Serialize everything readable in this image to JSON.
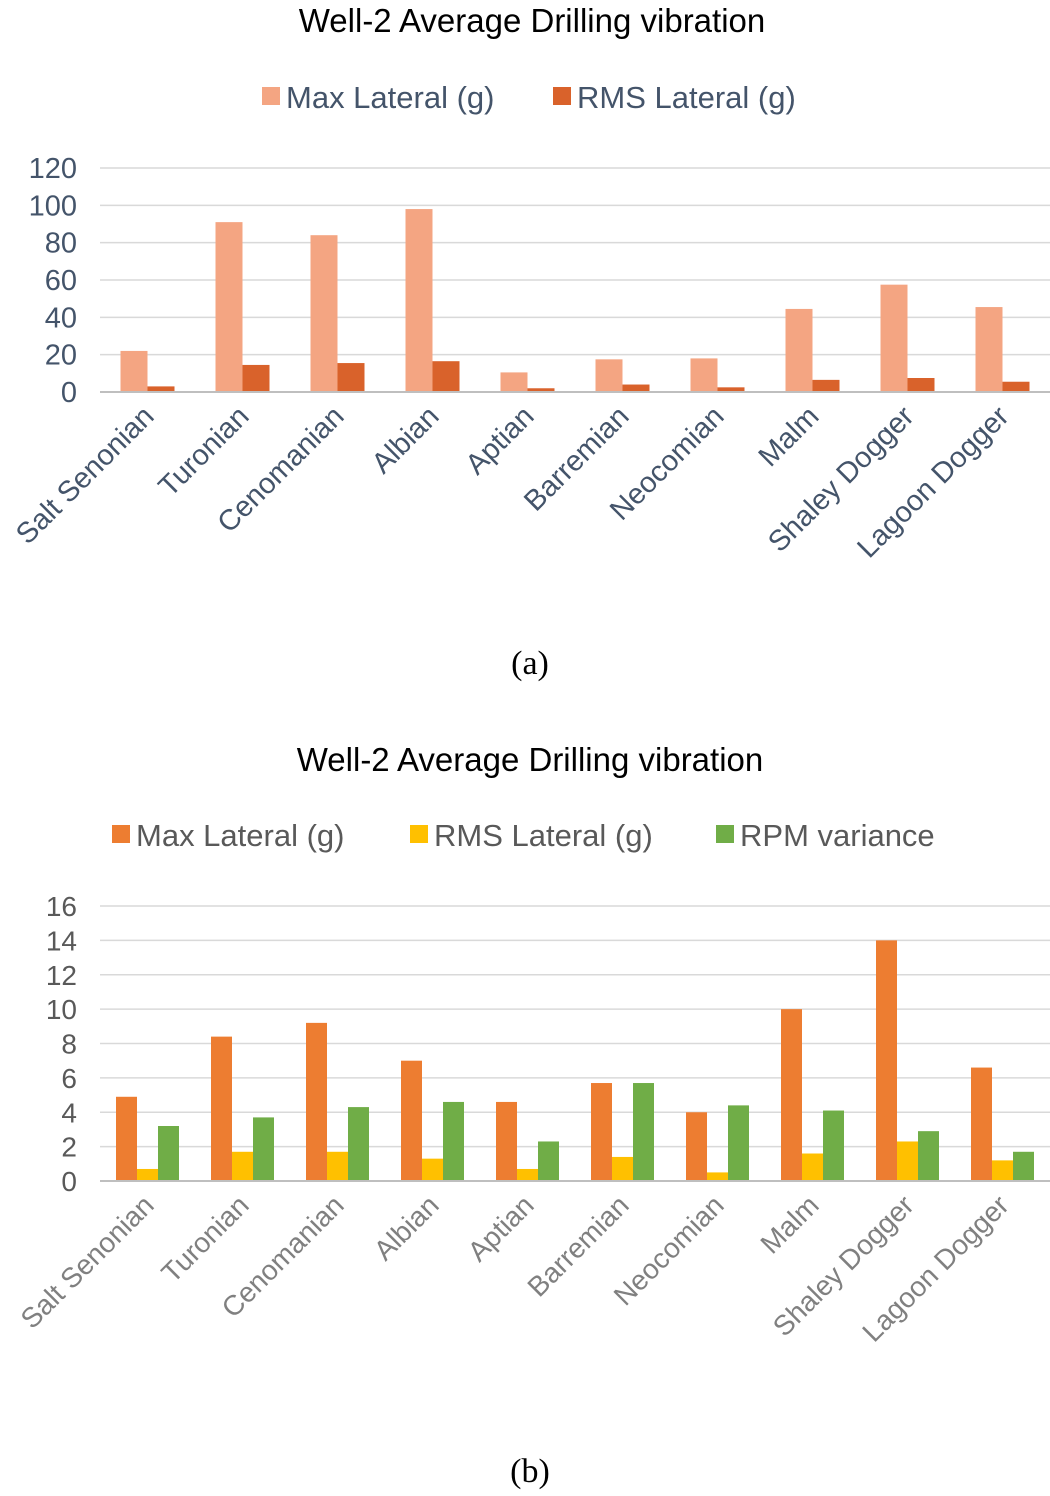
{
  "chart_data": [
    {
      "type": "bar",
      "title": "Well-2 Average Drilling vibration",
      "caption": "(a)",
      "categories": [
        "Salt Senonian",
        "Turonian",
        "Cenomanian",
        "Albian",
        "Aptian",
        "Barremian",
        "Neocomian",
        "Malm",
        "Shaley Dogger",
        "Lagoon Dogger"
      ],
      "series": [
        {
          "name": "Max Lateral (g)",
          "color": "#f4a582",
          "values": [
            22,
            91,
            84,
            98,
            10.5,
            17.5,
            18,
            44.5,
            57.5,
            45.5
          ]
        },
        {
          "name": "RMS Lateral (g)",
          "color": "#d9622b",
          "values": [
            3,
            14.5,
            15.5,
            16.5,
            2,
            4,
            2.5,
            6.5,
            7.5,
            5.5
          ]
        }
      ],
      "yticks": [
        "0",
        "20",
        "40",
        "60",
        "80",
        "100",
        "120"
      ],
      "ylim": [
        0,
        120
      ],
      "xlabel": "",
      "ylabel": "",
      "grid": true,
      "legend": "top"
    },
    {
      "type": "bar",
      "title": "Well-2 Average Drilling vibration",
      "caption": "(b)",
      "categories": [
        "Salt Senonian",
        "Turonian",
        "Cenomanian",
        "Albian",
        "Aptian",
        "Barremian",
        "Neocomian",
        "Malm",
        "Shaley Dogger",
        "Lagoon Dogger"
      ],
      "series": [
        {
          "name": "Max Lateral (g)",
          "color": "#ed7d31",
          "values": [
            4.9,
            8.4,
            9.2,
            7.0,
            4.6,
            5.7,
            4.0,
            10.0,
            14.0,
            6.6
          ]
        },
        {
          "name": "RMS Lateral (g)",
          "color": "#ffc000",
          "values": [
            0.7,
            1.7,
            1.7,
            1.3,
            0.7,
            1.4,
            0.5,
            1.6,
            2.3,
            1.2
          ]
        },
        {
          "name": "RPM variance",
          "color": "#70ad47",
          "values": [
            3.2,
            3.7,
            4.3,
            4.6,
            2.3,
            5.7,
            4.4,
            4.1,
            2.9,
            1.7
          ]
        }
      ],
      "yticks": [
        "0",
        "2",
        "4",
        "6",
        "8",
        "10",
        "12",
        "14",
        "16"
      ],
      "ylim": [
        0,
        16
      ],
      "xlabel": "",
      "ylabel": "",
      "grid": true,
      "legend": "top"
    }
  ],
  "colors": {
    "legend_text_a": "#44546a",
    "legend_text_b": "#595959"
  }
}
